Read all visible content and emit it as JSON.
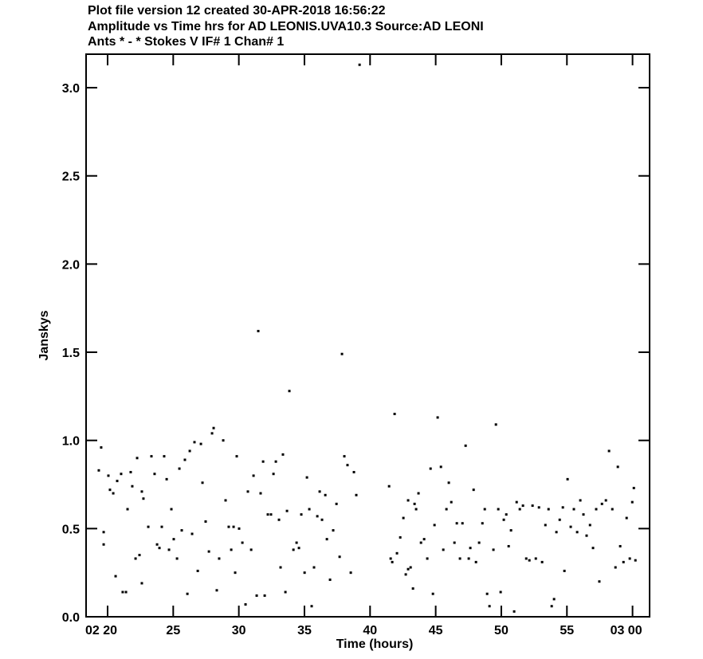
{
  "chart_data": {
    "type": "scatter",
    "title": "Plot file version 12  created 30-APR-2018 16:56:22",
    "subtitles": [
      "Amplitude vs Time hrs for AD LEONIS.UVA10.3   Source:AD LEONI",
      "Ants * - *    Stokes V  IF# 1  Chan# 1"
    ],
    "x_label": "Time (hours)",
    "y_label": "Janskys",
    "xlim": [
      18.36,
      61.3
    ],
    "ylim": [
      0,
      3.19
    ],
    "xticks": [
      {
        "value": 20,
        "label": "02 20"
      },
      25,
      30,
      35,
      40,
      45,
      50,
      55,
      {
        "value": 60,
        "label": "03 00"
      }
    ],
    "yticks": [
      {
        "value": 0,
        "label": "0.0"
      },
      0.5,
      {
        "value": 1,
        "label": "1.0"
      },
      1.5,
      {
        "value": 2,
        "label": "2.0"
      },
      2.5,
      {
        "value": 3,
        "label": "3.0"
      }
    ],
    "color": "#000000",
    "x": [
      19.33,
      19.51,
      19.7,
      19.7,
      20.06,
      20.18,
      20.43,
      20.61,
      20.73,
      21.03,
      21.15,
      21.4,
      21.52,
      21.76,
      21.88,
      22.13,
      22.25,
      22.43,
      22.61,
      22.73,
      22.61,
      23.1,
      23.34,
      23.58,
      23.77,
      23.95,
      24.13,
      24.31,
      24.5,
      24.68,
      24.86,
      25.04,
      25.29,
      25.47,
      25.65,
      25.89,
      26.08,
      26.26,
      26.44,
      26.62,
      26.87,
      27.11,
      27.23,
      27.47,
      27.72,
      27.96,
      28.08,
      28.32,
      28.5,
      28.81,
      28.99,
      29.23,
      29.42,
      29.6,
      29.72,
      29.84,
      30.02,
      30.27,
      30.51,
      30.69,
      30.94,
      31.12,
      31.36,
      31.48,
      31.66,
      31.85,
      31.97,
      32.21,
      32.45,
      32.64,
      32.82,
      33.06,
      33.18,
      33.36,
      33.55,
      33.67,
      33.85,
      34.16,
      34.4,
      34.58,
      34.76,
      35.01,
      35.19,
      35.37,
      35.55,
      35.73,
      35.98,
      36.16,
      36.34,
      36.59,
      36.71,
      36.95,
      37.19,
      37.44,
      37.68,
      37.86,
      38.04,
      38.28,
      38.53,
      38.77,
      38.95,
      39.2,
      41.45,
      41.57,
      41.69,
      41.87,
      42.05,
      42.3,
      42.54,
      42.72,
      42.9,
      42.9,
      43.09,
      43.27,
      43.39,
      43.51,
      43.69,
      43.88,
      44.12,
      44.36,
      44.61,
      44.79,
      44.91,
      45.15,
      45.4,
      45.58,
      45.82,
      46.0,
      46.19,
      46.43,
      46.61,
      46.85,
      47.04,
      47.28,
      47.52,
      47.64,
      47.89,
      48.07,
      48.31,
      48.56,
      48.74,
      48.92,
      49.1,
      49.4,
      49.59,
      49.77,
      49.95,
      50.19,
      50.38,
      50.56,
      50.74,
      50.98,
      51.17,
      51.41,
      51.65,
      51.9,
      52.14,
      52.38,
      52.63,
      52.87,
      53.11,
      53.36,
      53.6,
      53.84,
      54.02,
      54.2,
      54.45,
      54.69,
      54.81,
      55.05,
      55.29,
      55.53,
      55.78,
      56.02,
      56.26,
      56.5,
      56.76,
      56.99,
      57.23,
      57.47,
      57.67,
      57.97,
      58.21,
      58.46,
      58.7,
      58.88,
      59.06,
      59.31,
      59.55,
      59.79,
      59.98,
      60.1,
      60.22
    ],
    "values": [
      0.83,
      0.96,
      0.48,
      0.41,
      0.8,
      0.72,
      0.7,
      0.23,
      0.77,
      0.81,
      0.14,
      0.14,
      0.61,
      0.82,
      0.74,
      0.33,
      0.9,
      0.35,
      0.71,
      0.67,
      0.19,
      0.51,
      0.91,
      0.81,
      0.41,
      0.39,
      0.51,
      0.91,
      0.78,
      0.38,
      0.61,
      0.44,
      0.33,
      0.84,
      0.49,
      0.89,
      0.13,
      0.94,
      0.47,
      0.99,
      0.26,
      0.98,
      0.76,
      0.54,
      0.37,
      1.04,
      1.07,
      0.15,
      0.33,
      1.0,
      0.66,
      0.51,
      0.38,
      0.51,
      0.25,
      0.91,
      0.5,
      0.42,
      0.07,
      0.71,
      0.38,
      0.8,
      0.12,
      1.62,
      0.7,
      0.88,
      0.12,
      0.58,
      0.58,
      0.81,
      0.88,
      0.55,
      0.28,
      0.92,
      0.14,
      0.6,
      1.28,
      0.38,
      0.42,
      0.39,
      0.58,
      0.25,
      0.79,
      0.61,
      0.06,
      0.28,
      0.57,
      0.71,
      0.55,
      0.69,
      0.44,
      0.21,
      0.49,
      0.64,
      0.34,
      1.49,
      0.91,
      0.86,
      0.25,
      0.82,
      0.69,
      3.13,
      0.74,
      0.33,
      0.31,
      1.15,
      0.36,
      0.45,
      0.56,
      0.24,
      0.66,
      0.27,
      0.28,
      0.16,
      0.64,
      0.61,
      0.7,
      0.42,
      0.44,
      0.33,
      0.84,
      0.13,
      0.52,
      1.13,
      0.85,
      0.38,
      0.61,
      0.76,
      0.65,
      0.42,
      0.53,
      0.33,
      0.53,
      0.97,
      0.33,
      0.39,
      0.72,
      0.31,
      0.42,
      0.53,
      0.61,
      0.13,
      0.06,
      0.38,
      1.09,
      0.61,
      0.14,
      0.55,
      0.58,
      0.4,
      0.49,
      0.03,
      0.65,
      0.61,
      0.63,
      0.33,
      0.32,
      0.63,
      0.33,
      0.62,
      0.31,
      0.52,
      0.61,
      0.06,
      0.1,
      0.48,
      0.55,
      0.62,
      0.26,
      0.78,
      0.51,
      0.61,
      0.48,
      0.66,
      0.58,
      0.46,
      0.52,
      0.39,
      0.61,
      0.2,
      0.64,
      0.66,
      0.94,
      0.61,
      0.28,
      0.85,
      0.4,
      0.31,
      0.56,
      0.33,
      0.65,
      0.73,
      0.32
    ]
  }
}
